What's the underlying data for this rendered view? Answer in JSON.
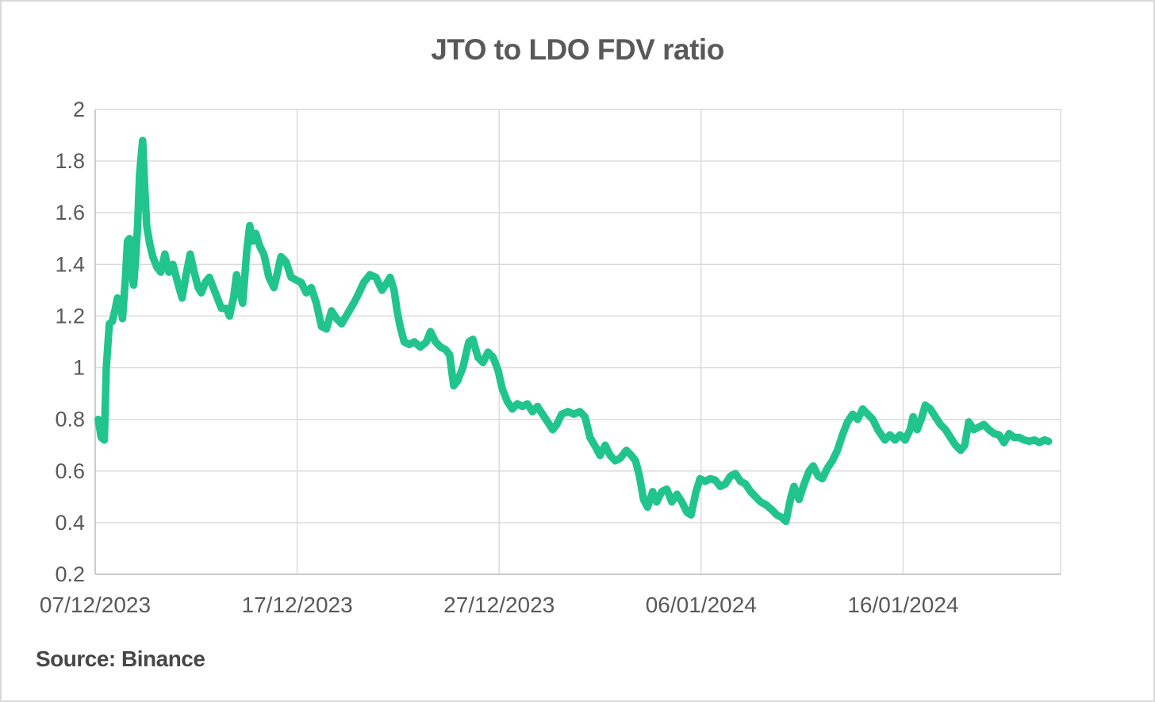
{
  "chart": {
    "title": "JTO to LDO FDV ratio",
    "source": "Source: Binance",
    "colors": {
      "series": "#22C48E",
      "gridline": "#D9D9D9",
      "axis_line": "#BFBFBF",
      "tick_label": "#595959",
      "title": "#595959",
      "source_text": "#474747",
      "frame_border": "#D9D9D9",
      "background": "#FFFFFF"
    }
  },
  "chart_data": {
    "type": "line",
    "title": "JTO to LDO FDV ratio",
    "source": "Source: Binance",
    "legend": false,
    "grid": true,
    "x_axis": {
      "label": "",
      "unit": "days since 07/12/2023",
      "range": [
        0,
        47.8
      ],
      "ticks": [
        {
          "pos": 0,
          "label": "07/12/2023"
        },
        {
          "pos": 10,
          "label": "17/12/2023"
        },
        {
          "pos": 20,
          "label": "27/12/2023"
        },
        {
          "pos": 30,
          "label": "06/01/2024"
        },
        {
          "pos": 40,
          "label": "16/01/2024"
        }
      ]
    },
    "y_axis": {
      "label": "",
      "range": [
        0.2,
        2
      ],
      "ticks": [
        {
          "value": 2,
          "label": "2"
        },
        {
          "value": 1.8,
          "label": "1.8"
        },
        {
          "value": 1.6,
          "label": "1.6"
        },
        {
          "value": 1.4,
          "label": "1.4"
        },
        {
          "value": 1.2,
          "label": "1.2"
        },
        {
          "value": 1,
          "label": "1"
        },
        {
          "value": 0.8,
          "label": "0.8"
        },
        {
          "value": 0.6,
          "label": "0.6"
        },
        {
          "value": 0.4,
          "label": "0.4"
        },
        {
          "value": 0.2,
          "label": "0.2"
        }
      ]
    },
    "series": [
      {
        "name": "JTO to LDO FDV ratio",
        "color": "#22C48E",
        "stroke_width": 9.5,
        "points": [
          [
            0.15,
            0.8
          ],
          [
            0.3,
            0.73
          ],
          [
            0.45,
            0.72
          ],
          [
            0.55,
            1.0
          ],
          [
            0.7,
            1.17
          ],
          [
            0.85,
            1.18
          ],
          [
            1.0,
            1.23
          ],
          [
            1.1,
            1.27
          ],
          [
            1.25,
            1.26
          ],
          [
            1.35,
            1.19
          ],
          [
            1.5,
            1.35
          ],
          [
            1.6,
            1.49
          ],
          [
            1.7,
            1.5
          ],
          [
            1.8,
            1.38
          ],
          [
            1.9,
            1.32
          ],
          [
            2.0,
            1.42
          ],
          [
            2.1,
            1.55
          ],
          [
            2.2,
            1.75
          ],
          [
            2.35,
            1.88
          ],
          [
            2.45,
            1.7
          ],
          [
            2.55,
            1.55
          ],
          [
            2.7,
            1.48
          ],
          [
            2.85,
            1.43
          ],
          [
            3.05,
            1.39
          ],
          [
            3.25,
            1.37
          ],
          [
            3.45,
            1.44
          ],
          [
            3.65,
            1.37
          ],
          [
            3.85,
            1.4
          ],
          [
            4.05,
            1.34
          ],
          [
            4.3,
            1.27
          ],
          [
            4.5,
            1.36
          ],
          [
            4.7,
            1.44
          ],
          [
            4.9,
            1.37
          ],
          [
            5.1,
            1.31
          ],
          [
            5.25,
            1.29
          ],
          [
            5.45,
            1.33
          ],
          [
            5.65,
            1.35
          ],
          [
            5.85,
            1.31
          ],
          [
            6.05,
            1.27
          ],
          [
            6.25,
            1.23
          ],
          [
            6.5,
            1.23
          ],
          [
            6.65,
            1.2
          ],
          [
            6.85,
            1.27
          ],
          [
            7.0,
            1.36
          ],
          [
            7.15,
            1.3
          ],
          [
            7.3,
            1.25
          ],
          [
            7.5,
            1.45
          ],
          [
            7.65,
            1.55
          ],
          [
            7.8,
            1.49
          ],
          [
            7.95,
            1.52
          ],
          [
            8.15,
            1.47
          ],
          [
            8.35,
            1.44
          ],
          [
            8.6,
            1.35
          ],
          [
            8.85,
            1.31
          ],
          [
            9.0,
            1.36
          ],
          [
            9.2,
            1.43
          ],
          [
            9.45,
            1.41
          ],
          [
            9.7,
            1.35
          ],
          [
            9.95,
            1.34
          ],
          [
            10.2,
            1.33
          ],
          [
            10.45,
            1.29
          ],
          [
            10.7,
            1.31
          ],
          [
            10.95,
            1.25
          ],
          [
            11.2,
            1.16
          ],
          [
            11.45,
            1.15
          ],
          [
            11.7,
            1.22
          ],
          [
            11.95,
            1.19
          ],
          [
            12.2,
            1.17
          ],
          [
            12.5,
            1.21
          ],
          [
            12.8,
            1.25
          ],
          [
            13.0,
            1.28
          ],
          [
            13.3,
            1.33
          ],
          [
            13.6,
            1.36
          ],
          [
            13.9,
            1.35
          ],
          [
            14.2,
            1.3
          ],
          [
            14.45,
            1.33
          ],
          [
            14.6,
            1.35
          ],
          [
            14.8,
            1.3
          ],
          [
            14.95,
            1.22
          ],
          [
            15.1,
            1.16
          ],
          [
            15.3,
            1.1
          ],
          [
            15.55,
            1.09
          ],
          [
            15.8,
            1.1
          ],
          [
            16.1,
            1.08
          ],
          [
            16.4,
            1.1
          ],
          [
            16.6,
            1.14
          ],
          [
            16.85,
            1.1
          ],
          [
            17.1,
            1.08
          ],
          [
            17.35,
            1.07
          ],
          [
            17.55,
            1.05
          ],
          [
            17.75,
            0.93
          ],
          [
            17.95,
            0.95
          ],
          [
            18.2,
            1.0
          ],
          [
            18.5,
            1.1
          ],
          [
            18.7,
            1.11
          ],
          [
            18.95,
            1.04
          ],
          [
            19.2,
            1.02
          ],
          [
            19.45,
            1.06
          ],
          [
            19.7,
            1.04
          ],
          [
            19.95,
            0.99
          ],
          [
            20.15,
            0.92
          ],
          [
            20.4,
            0.87
          ],
          [
            20.65,
            0.84
          ],
          [
            20.9,
            0.86
          ],
          [
            21.15,
            0.85
          ],
          [
            21.4,
            0.86
          ],
          [
            21.65,
            0.83
          ],
          [
            21.9,
            0.85
          ],
          [
            22.15,
            0.82
          ],
          [
            22.4,
            0.79
          ],
          [
            22.65,
            0.76
          ],
          [
            22.85,
            0.78
          ],
          [
            23.1,
            0.82
          ],
          [
            23.4,
            0.83
          ],
          [
            23.7,
            0.82
          ],
          [
            24.0,
            0.83
          ],
          [
            24.25,
            0.81
          ],
          [
            24.5,
            0.73
          ],
          [
            24.8,
            0.69
          ],
          [
            25.0,
            0.66
          ],
          [
            25.25,
            0.7
          ],
          [
            25.5,
            0.66
          ],
          [
            25.75,
            0.64
          ],
          [
            26.0,
            0.65
          ],
          [
            26.3,
            0.68
          ],
          [
            26.55,
            0.66
          ],
          [
            26.75,
            0.64
          ],
          [
            26.95,
            0.58
          ],
          [
            27.15,
            0.49
          ],
          [
            27.35,
            0.46
          ],
          [
            27.6,
            0.52
          ],
          [
            27.8,
            0.48
          ],
          [
            28.05,
            0.52
          ],
          [
            28.3,
            0.53
          ],
          [
            28.55,
            0.48
          ],
          [
            28.8,
            0.51
          ],
          [
            29.05,
            0.48
          ],
          [
            29.3,
            0.44
          ],
          [
            29.5,
            0.43
          ],
          [
            29.75,
            0.52
          ],
          [
            29.95,
            0.57
          ],
          [
            30.2,
            0.56
          ],
          [
            30.45,
            0.57
          ],
          [
            30.7,
            0.565
          ],
          [
            30.95,
            0.54
          ],
          [
            31.2,
            0.55
          ],
          [
            31.45,
            0.58
          ],
          [
            31.7,
            0.59
          ],
          [
            31.95,
            0.56
          ],
          [
            32.2,
            0.55
          ],
          [
            32.45,
            0.52
          ],
          [
            32.7,
            0.5
          ],
          [
            32.95,
            0.48
          ],
          [
            33.2,
            0.47
          ],
          [
            33.5,
            0.45
          ],
          [
            33.75,
            0.43
          ],
          [
            34.0,
            0.42
          ],
          [
            34.2,
            0.405
          ],
          [
            34.45,
            0.5
          ],
          [
            34.6,
            0.54
          ],
          [
            34.85,
            0.49
          ],
          [
            35.1,
            0.55
          ],
          [
            35.35,
            0.6
          ],
          [
            35.55,
            0.62
          ],
          [
            35.8,
            0.58
          ],
          [
            36.0,
            0.57
          ],
          [
            36.25,
            0.61
          ],
          [
            36.5,
            0.64
          ],
          [
            36.75,
            0.68
          ],
          [
            37.0,
            0.74
          ],
          [
            37.25,
            0.79
          ],
          [
            37.5,
            0.82
          ],
          [
            37.75,
            0.8
          ],
          [
            38.0,
            0.84
          ],
          [
            38.25,
            0.82
          ],
          [
            38.5,
            0.8
          ],
          [
            38.75,
            0.76
          ],
          [
            39.1,
            0.72
          ],
          [
            39.35,
            0.74
          ],
          [
            39.6,
            0.72
          ],
          [
            39.85,
            0.74
          ],
          [
            40.1,
            0.72
          ],
          [
            40.35,
            0.76
          ],
          [
            40.5,
            0.81
          ],
          [
            40.7,
            0.76
          ],
          [
            40.9,
            0.8
          ],
          [
            41.1,
            0.855
          ],
          [
            41.35,
            0.84
          ],
          [
            41.6,
            0.81
          ],
          [
            41.85,
            0.78
          ],
          [
            42.1,
            0.76
          ],
          [
            42.35,
            0.73
          ],
          [
            42.6,
            0.7
          ],
          [
            42.85,
            0.68
          ],
          [
            43.05,
            0.7
          ],
          [
            43.25,
            0.79
          ],
          [
            43.5,
            0.76
          ],
          [
            43.75,
            0.77
          ],
          [
            44.0,
            0.78
          ],
          [
            44.25,
            0.76
          ],
          [
            44.5,
            0.745
          ],
          [
            44.75,
            0.74
          ],
          [
            45.0,
            0.71
          ],
          [
            45.25,
            0.745
          ],
          [
            45.5,
            0.73
          ],
          [
            45.75,
            0.73
          ],
          [
            46.0,
            0.72
          ],
          [
            46.25,
            0.715
          ],
          [
            46.5,
            0.72
          ],
          [
            46.75,
            0.71
          ],
          [
            47.0,
            0.72
          ],
          [
            47.2,
            0.715
          ]
        ]
      }
    ]
  }
}
